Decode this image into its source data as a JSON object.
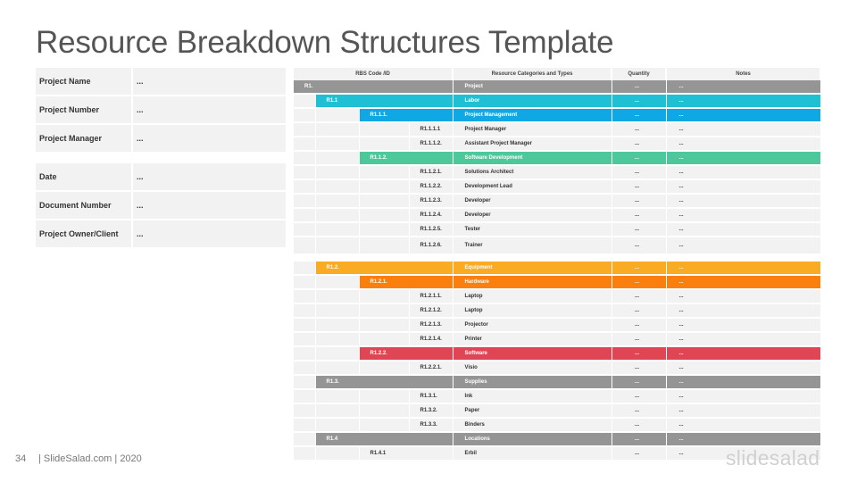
{
  "title": "Resource Breakdown Structures Template",
  "info_top": [
    {
      "label": "Project Name",
      "value": "..."
    },
    {
      "label": "Project Number",
      "value": "..."
    },
    {
      "label": "Project Manager",
      "value": "..."
    }
  ],
  "info_bottom": [
    {
      "label": "Date",
      "value": "..."
    },
    {
      "label": "Document Number",
      "value": "..."
    },
    {
      "label": "Project Owner/Client",
      "value": "..."
    }
  ],
  "table": {
    "headers": {
      "code": "RBS Code /ID",
      "category": "Resource Categories and Types",
      "quantity": "Quantity",
      "notes": "Notes"
    },
    "rows": [
      {
        "level": 0,
        "code": "R1.",
        "category": "Project",
        "quantity": "...",
        "notes": "...",
        "color": "#959595"
      },
      {
        "level": 1,
        "code": "R1.1",
        "category": "Labor",
        "quantity": "...",
        "notes": "...",
        "color": "#1fc0d4"
      },
      {
        "level": 2,
        "code": "R1.1.1.",
        "category": "Project Management",
        "quantity": "...",
        "notes": "...",
        "color": "#0fa8e4"
      },
      {
        "level": 3,
        "code": "R1.1.1.1",
        "category": "Project Manager",
        "quantity": "...",
        "notes": "..."
      },
      {
        "level": 3,
        "code": "R1.1.1.2.",
        "category": "Assistant Project Manager",
        "quantity": "...",
        "notes": "..."
      },
      {
        "level": 2,
        "code": "R1.1.2.",
        "category": "Software Development",
        "quantity": "...",
        "notes": "...",
        "color": "#4cc89b"
      },
      {
        "level": 3,
        "code": "R1.1.2.1.",
        "category": "Solutions Architect",
        "quantity": "...",
        "notes": "..."
      },
      {
        "level": 3,
        "code": "R1.1.2.2.",
        "category": "Development Lead",
        "quantity": "...",
        "notes": "..."
      },
      {
        "level": 3,
        "code": "R1.1.2.3.",
        "category": "Developer",
        "quantity": "...",
        "notes": "..."
      },
      {
        "level": 3,
        "code": "R1.1.2.4.",
        "category": "Developer",
        "quantity": "...",
        "notes": "..."
      },
      {
        "level": 3,
        "code": "R1.1.2.5.",
        "category": "Tester",
        "quantity": "...",
        "notes": "..."
      },
      {
        "level": 3,
        "code": "R1.1.2.6.",
        "category": "Trainer",
        "quantity": "...",
        "notes": "...",
        "tall": true
      },
      {
        "gap": true
      },
      {
        "level": 1,
        "code": "R1.2.",
        "category": "Equipment",
        "quantity": "...",
        "notes": "...",
        "color": "#f9ab23"
      },
      {
        "level": 2,
        "code": "R1.2.1.",
        "category": "Hardware",
        "quantity": "...",
        "notes": "...",
        "color": "#fa7f0c"
      },
      {
        "level": 3,
        "code": "R1.2.1.1.",
        "category": "Laptop",
        "quantity": "...",
        "notes": "..."
      },
      {
        "level": 3,
        "code": "R1.2.1.2.",
        "category": "Laptop",
        "quantity": "...",
        "notes": "..."
      },
      {
        "level": 3,
        "code": "R1.2.1.3.",
        "category": "Projector",
        "quantity": "...",
        "notes": "..."
      },
      {
        "level": 3,
        "code": "R1.2.1.4.",
        "category": "Printer",
        "quantity": "...",
        "notes": "..."
      },
      {
        "level": 2,
        "code": "R1.2.2.",
        "category": "Software",
        "quantity": "...",
        "notes": "...",
        "color": "#e04553"
      },
      {
        "level": 3,
        "code": "R1.2.2.1.",
        "category": "Visio",
        "quantity": "...",
        "notes": "..."
      },
      {
        "level": 1,
        "code": "R1.3.",
        "category": "Supplies",
        "quantity": "...",
        "notes": "...",
        "color": "#959595"
      },
      {
        "level": 3,
        "code": "R1.3.1.",
        "category": "Ink",
        "quantity": "...",
        "notes": "..."
      },
      {
        "level": 3,
        "code": "R1.3.2.",
        "category": "Paper",
        "quantity": "...",
        "notes": "..."
      },
      {
        "level": 3,
        "code": "R1.3.3.",
        "category": "Binders",
        "quantity": "...",
        "notes": "..."
      },
      {
        "level": 1,
        "code": "R1.4",
        "category": "Locations",
        "quantity": "...",
        "notes": "...",
        "color": "#959595"
      },
      {
        "level": 2,
        "code": "R1.4.1",
        "category": "Erbil",
        "quantity": "...",
        "notes": "..."
      }
    ]
  },
  "footer": {
    "page_number": "34",
    "text": "| SlideSalad.com | 2020",
    "logo": "slidesalad"
  }
}
